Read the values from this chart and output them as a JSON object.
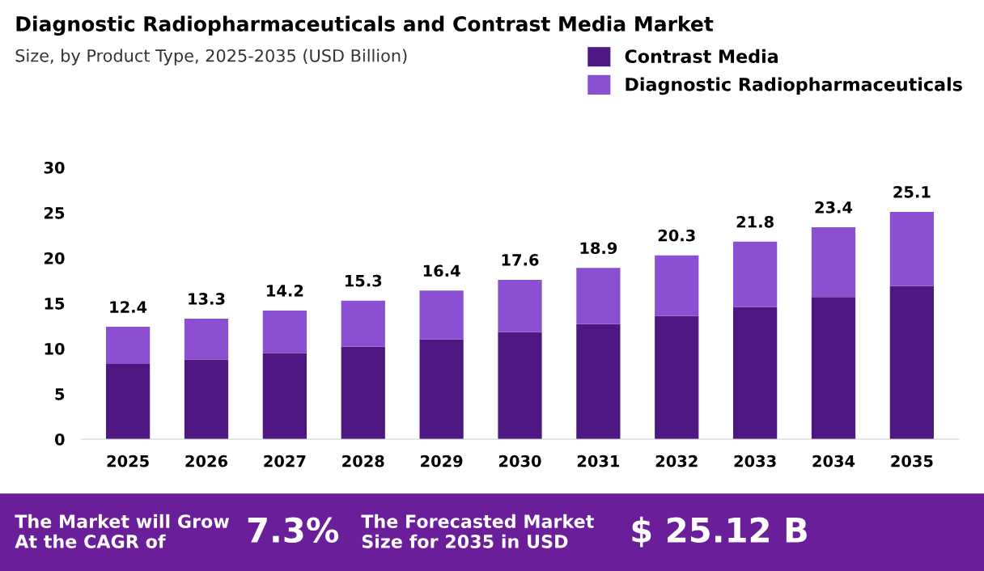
{
  "chart_data": {
    "type": "bar",
    "stacked": true,
    "title": "Diagnostic Radiopharmaceuticals and Contrast Media Market",
    "subtitle": "Size, by Product Type, 2025-2035 (USD Billion)",
    "categories": [
      "2025",
      "2026",
      "2027",
      "2028",
      "2029",
      "2030",
      "2031",
      "2032",
      "2033",
      "2034",
      "2035"
    ],
    "series": [
      {
        "name": "Contrast Media",
        "color": "#4e1782",
        "values": [
          8.3,
          8.8,
          9.5,
          10.2,
          11.0,
          11.8,
          12.7,
          13.6,
          14.6,
          15.7,
          16.9
        ]
      },
      {
        "name": "Diagnostic Radiopharmaceuticals",
        "color": "#8b4fd1",
        "values": [
          4.1,
          4.5,
          4.7,
          5.1,
          5.4,
          5.8,
          6.2,
          6.7,
          7.2,
          7.7,
          8.2
        ]
      }
    ],
    "totals": [
      "12.4",
      "13.3",
      "14.2",
      "15.3",
      "16.4",
      "17.6",
      "18.9",
      "20.3",
      "21.8",
      "23.4",
      "25.1"
    ],
    "ylim": [
      0,
      30
    ],
    "yticks": [
      0,
      5,
      10,
      15,
      20,
      25,
      30
    ],
    "grid": false,
    "legend": "top right",
    "annotations": [
      "The Market will Grow\nAt the CAGR of",
      "7.3%",
      "The Forecasted Market\nSize for 2035 in USD",
      "$ 25.12 B"
    ]
  }
}
